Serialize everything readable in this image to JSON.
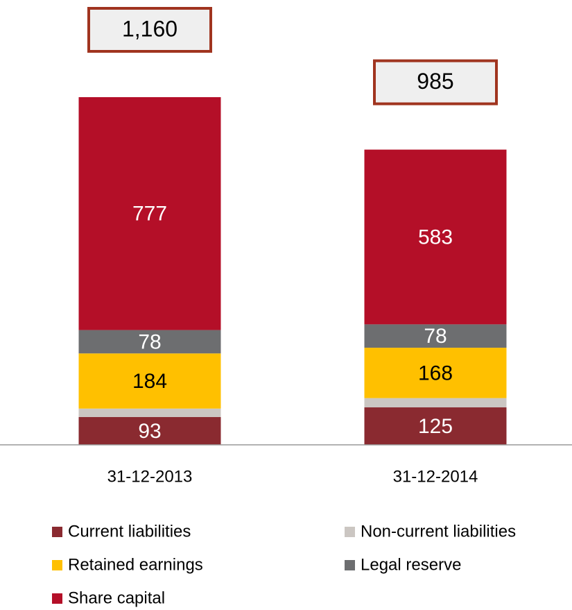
{
  "chart_data": {
    "type": "stacked_bar",
    "categories": [
      "31-12-2013",
      "31-12-2014"
    ],
    "series": [
      {
        "name": "Current liabilities",
        "color": "#8a2a30",
        "values": [
          93,
          125
        ]
      },
      {
        "name": "Non-current liabilities",
        "color": "#cbc6c2",
        "values": [
          28,
          31
        ]
      },
      {
        "name": "Retained earnings",
        "color": "#ffc000",
        "values": [
          184,
          168
        ]
      },
      {
        "name": "Legal reserve",
        "color": "#6d6e70",
        "values": [
          78,
          78
        ]
      },
      {
        "name": "Share capital",
        "color": "#b40f28",
        "values": [
          777,
          583
        ]
      }
    ],
    "totals": {
      "values": [
        1160,
        985
      ],
      "value_labels": [
        "1,160",
        "985"
      ]
    }
  }
}
